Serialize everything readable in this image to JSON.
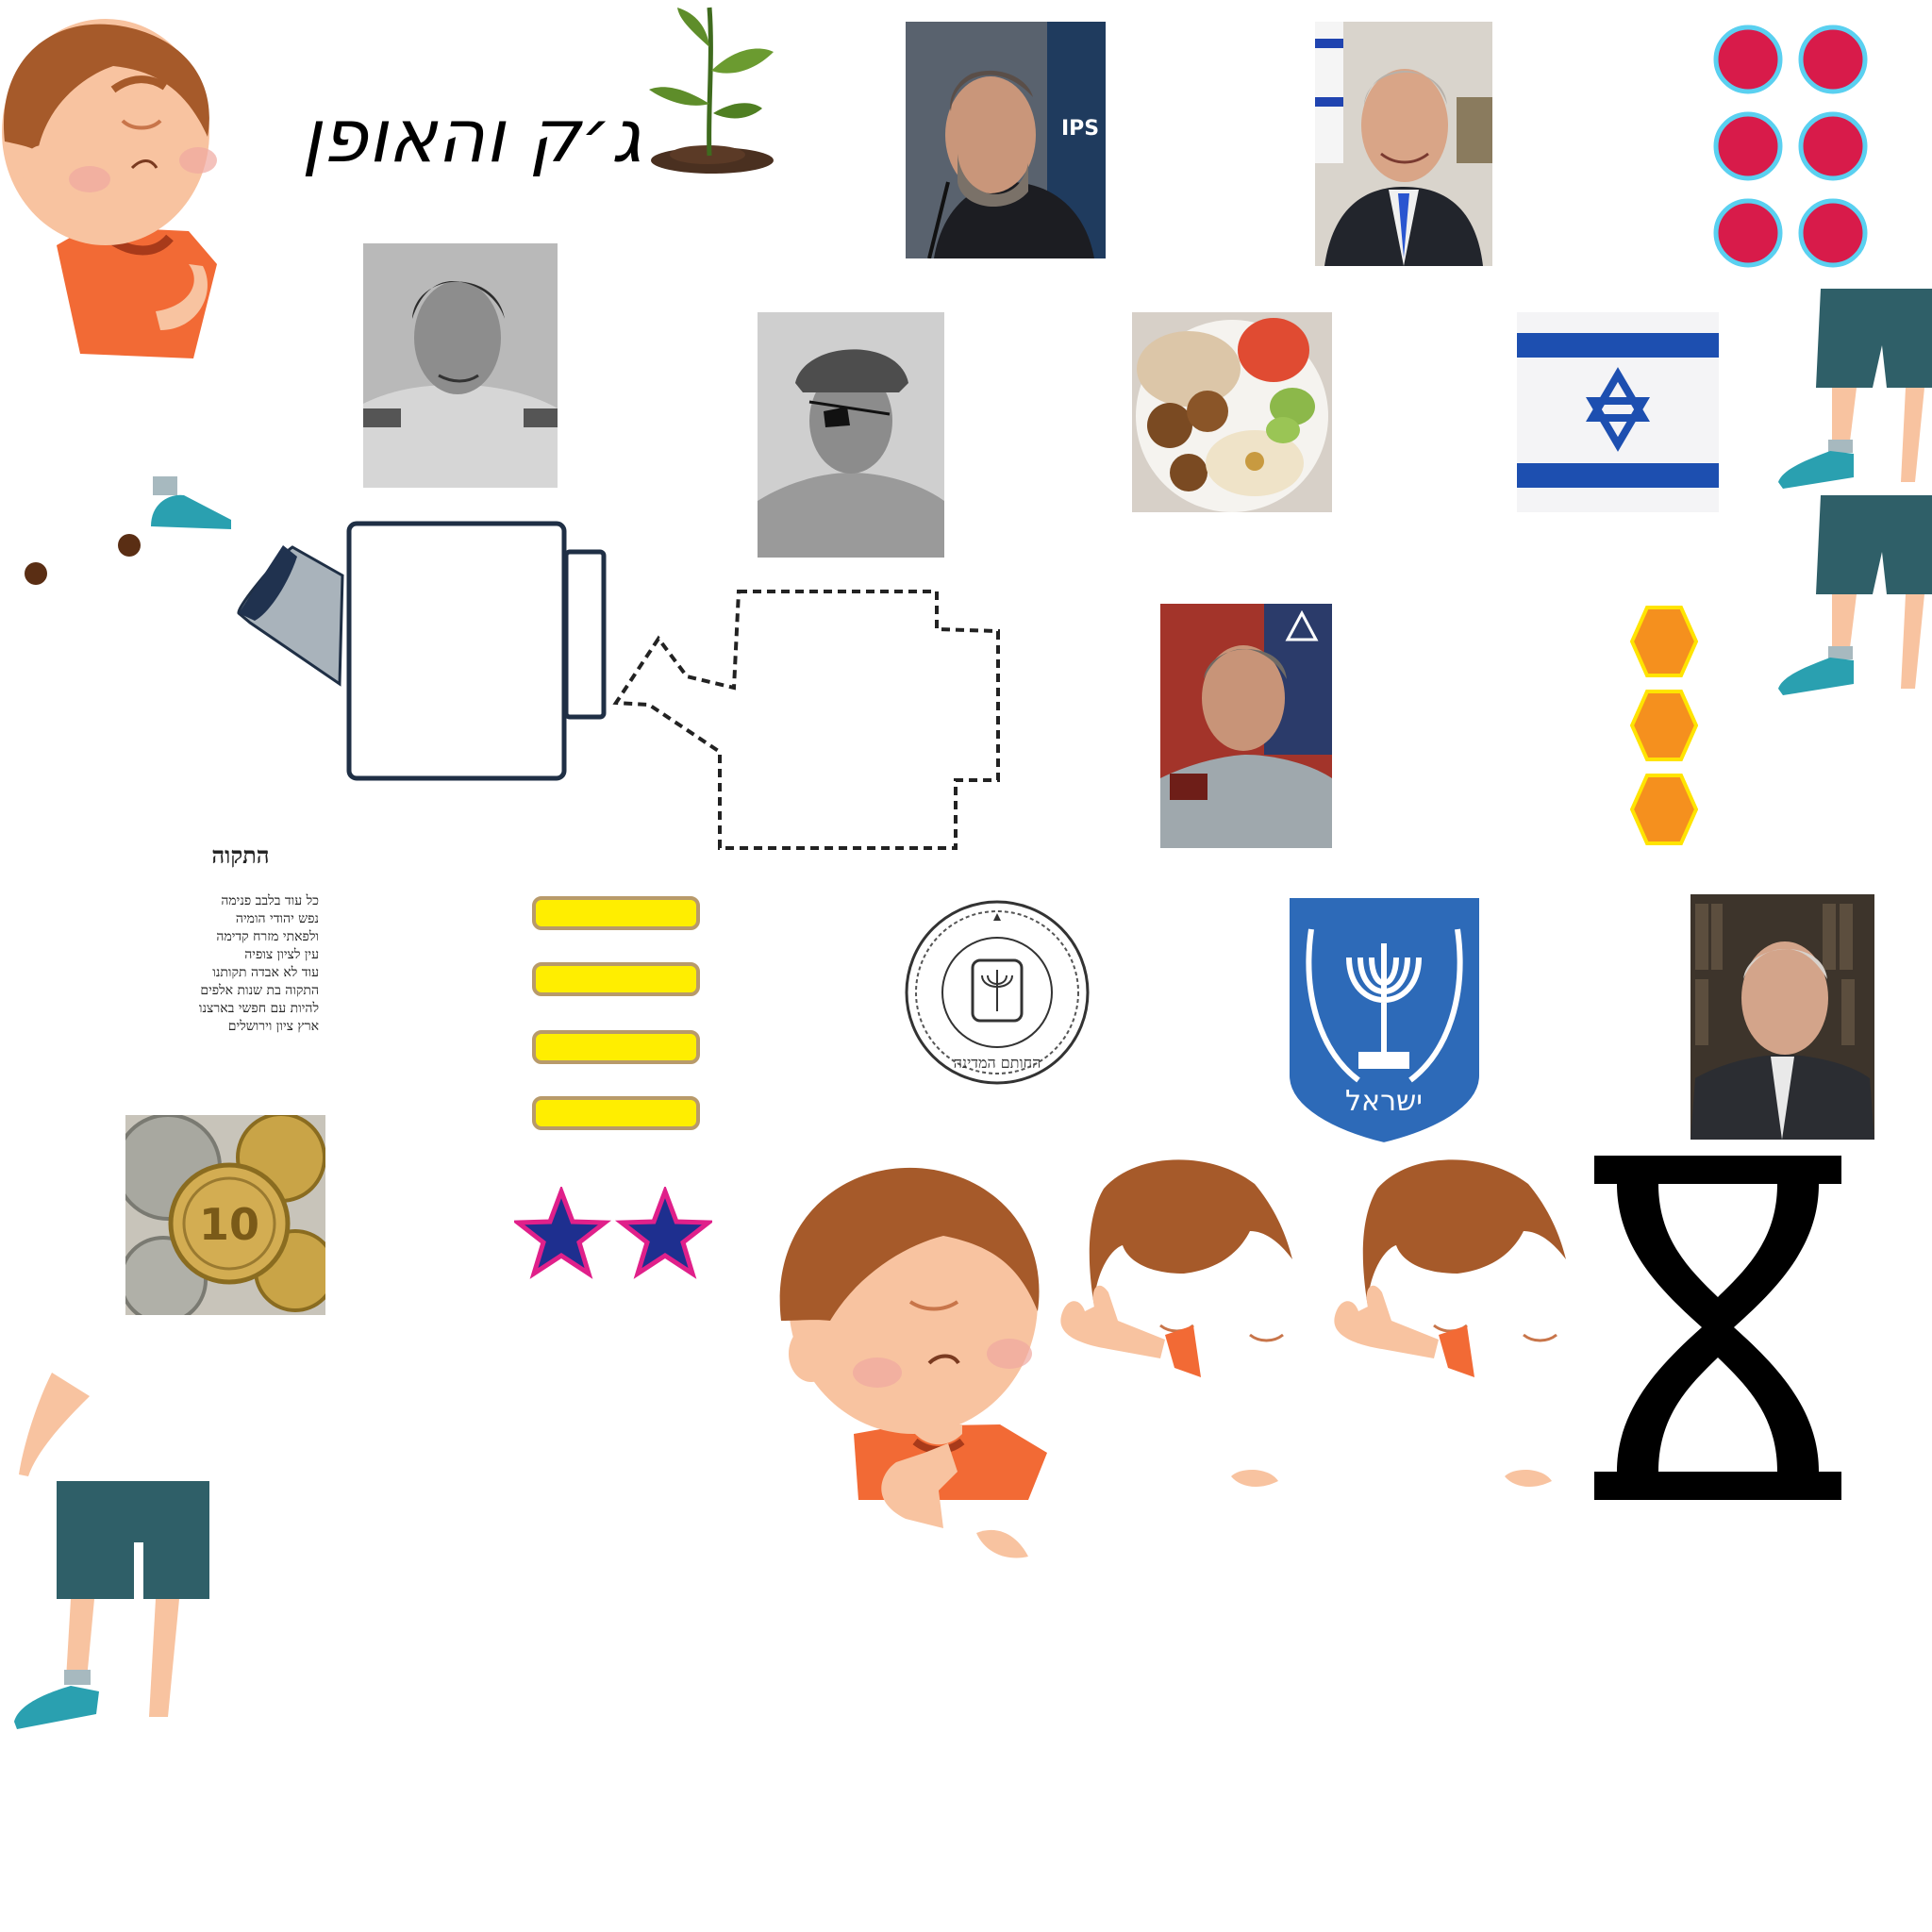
{
  "title": {
    "text": "ג׳ק והאופן"
  },
  "anthem": {
    "title": "התקוה",
    "lines": [
      "כל עוד בלבב פנימה",
      "נפש יהודי הומיה",
      "ולפאתי מזרח קדימה",
      "עין לציון צופיה",
      "עוד לא אבדה תקותנו",
      "התקוה בת שנות אלפים",
      "להיות עם חפשי בארצנו",
      "ארץ ציון וירושלים"
    ]
  },
  "seal": {
    "text": "החותם המדינה"
  },
  "emblem": {
    "text": "ישראל"
  },
  "coins": {
    "value_text": "10"
  },
  "counters": {
    "red_dots": 6,
    "orange_hexagons": 3,
    "yellow_bars": 4,
    "stars": 2
  },
  "icons": {
    "hourglass": "hourglass-icon",
    "sprout": "sprout-icon",
    "star": "star-icon",
    "watering_can": "watering-can-icon"
  },
  "colors": {
    "dot_fill": "#d81b4a",
    "dot_ring": "#5ad0f0",
    "hex_fill": "#f5901e",
    "hex_border": "#ffe400",
    "bar_fill": "#ffee00",
    "bar_border": "#b89a6a",
    "star_fill": "#1e2f8f",
    "star_border": "#e0208a",
    "shirt": "#f26a35",
    "shorts": "#2f5f68",
    "skin": "#f8c3a0",
    "hair": "#a65a2a",
    "flag_blue": "#1d4fb0",
    "emblem_blue": "#2d6ab8"
  }
}
